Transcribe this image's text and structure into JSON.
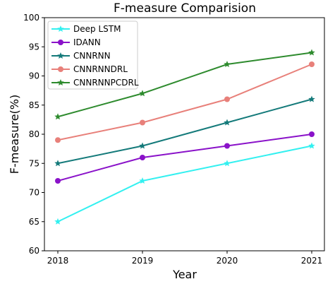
{
  "chart_data": {
    "type": "line",
    "title": "F-measure Comparision",
    "xlabel": "Year",
    "ylabel": "F-measure(%)",
    "x": [
      "2018",
      "2019",
      "2020",
      "2021"
    ],
    "ylim": [
      60,
      100
    ],
    "yticks": [
      "60",
      "65",
      "70",
      "75",
      "80",
      "85",
      "90",
      "95",
      "100"
    ],
    "grid": false,
    "legend_position": "top-left",
    "series": [
      {
        "name": "Deep LSTM",
        "color": "#33f0f0",
        "marker": "star",
        "values": [
          65,
          72,
          75,
          78
        ]
      },
      {
        "name": "IDANN",
        "color": "#8a12c9",
        "marker": "circle",
        "values": [
          72,
          76,
          78,
          80
        ]
      },
      {
        "name": "CNNRNN",
        "color": "#147a7a",
        "marker": "star",
        "values": [
          75,
          78,
          82,
          86
        ]
      },
      {
        "name": "CNNRNNDRL",
        "color": "#e8807a",
        "marker": "circle",
        "values": [
          79,
          82,
          86,
          92
        ]
      },
      {
        "name": "CNNRNNPCDRL",
        "color": "#2e8b2e",
        "marker": "star",
        "values": [
          83,
          87,
          92,
          94
        ]
      }
    ]
  }
}
